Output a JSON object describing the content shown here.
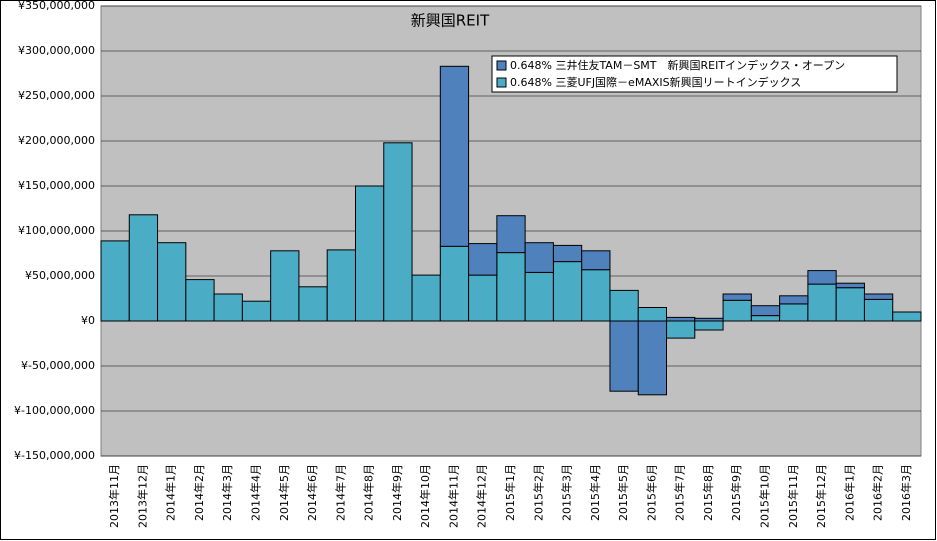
{
  "chart_data": {
    "type": "stacked-bar",
    "title": "新興国REIT",
    "categories": [
      "2013年11月",
      "2013年12月",
      "2014年1月",
      "2014年2月",
      "2014年3月",
      "2014年4月",
      "2014年5月",
      "2014年6月",
      "2014年7月",
      "2014年8月",
      "2014年9月",
      "2014年10月",
      "2014年11月",
      "2014年12月",
      "2015年1月",
      "2015年2月",
      "2015年3月",
      "2015年4月",
      "2015年5月",
      "2015年6月",
      "2015年7月",
      "2015年8月",
      "2015年9月",
      "2015年10月",
      "2015年11月",
      "2015年12月",
      "2016年1月",
      "2016年2月",
      "2016年3月"
    ],
    "series": [
      {
        "name": "0.648% 三井住友TAM－SMT　新興国REITインデックス・オープン",
        "color": "#4f81bd",
        "values": [
          0,
          0,
          0,
          0,
          0,
          0,
          0,
          0,
          0,
          0,
          0,
          0,
          200000000,
          35000000,
          41000000,
          33000000,
          18000000,
          21000000,
          -78000000,
          -82000000,
          4000000,
          3000000,
          7000000,
          11000000,
          9000000,
          15000000,
          5000000,
          6000000,
          0
        ]
      },
      {
        "name": "0.648% 三菱UFJ国際－eMAXIS新興国リートインデックス",
        "color": "#4bacc6",
        "values": [
          89000000,
          118000000,
          87000000,
          46000000,
          30000000,
          22000000,
          78000000,
          38000000,
          79000000,
          150000000,
          198000000,
          51000000,
          83000000,
          51000000,
          76000000,
          54000000,
          66000000,
          57000000,
          34000000,
          15000000,
          -19000000,
          -10000000,
          23000000,
          6000000,
          19000000,
          41000000,
          37000000,
          24000000,
          10000000
        ]
      }
    ],
    "ylim": [
      -150000000,
      350000000
    ],
    "yticks": [
      {
        "value": -150000000,
        "label": "¥-150,000,000"
      },
      {
        "value": -100000000,
        "label": "¥-100,000,000"
      },
      {
        "value": -50000000,
        "label": "¥-50,000,000"
      },
      {
        "value": 0,
        "label": "¥0"
      },
      {
        "value": 50000000,
        "label": "¥50,000,000"
      },
      {
        "value": 100000000,
        "label": "¥100,000,000"
      },
      {
        "value": 150000000,
        "label": "¥150,000,000"
      },
      {
        "value": 200000000,
        "label": "¥200,000,000"
      },
      {
        "value": 250000000,
        "label": "¥250,000,000"
      },
      {
        "value": 300000000,
        "label": "¥300,000,000"
      },
      {
        "value": 350000000,
        "label": "¥350,000,000"
      }
    ],
    "grid": true
  }
}
